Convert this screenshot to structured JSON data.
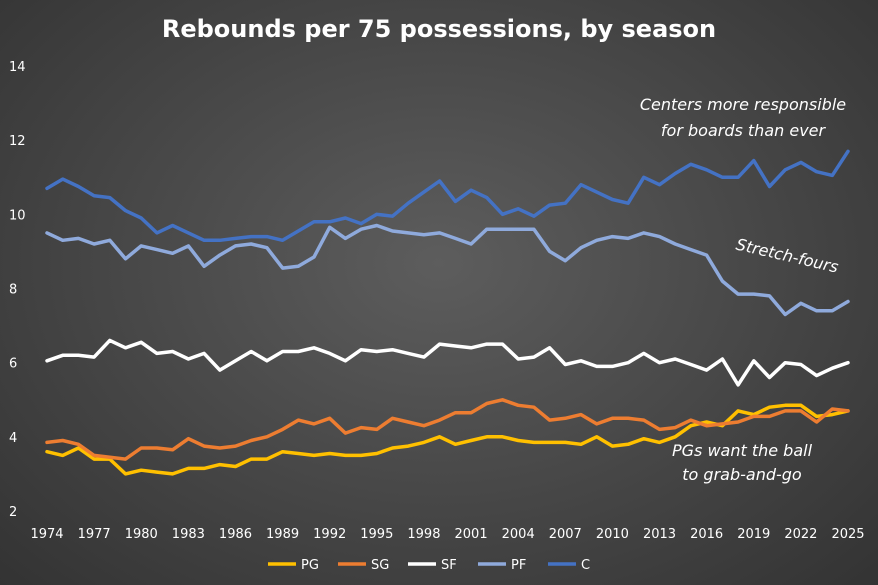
{
  "chart_data": {
    "type": "line",
    "title": "Rebounds per 75 possessions, by season",
    "xlabel": "",
    "ylabel": "",
    "xlim": [
      1974,
      2025
    ],
    "ylim": [
      2,
      14
    ],
    "yticks": [
      2,
      4,
      6,
      8,
      10,
      12,
      14
    ],
    "xticks": [
      1974,
      1977,
      1980,
      1983,
      1986,
      1989,
      1992,
      1995,
      1998,
      2001,
      2004,
      2007,
      2010,
      2013,
      2016,
      2019,
      2022,
      2025
    ],
    "grid": false,
    "legend_position": "bottom",
    "x": [
      1974,
      1975,
      1976,
      1977,
      1978,
      1979,
      1980,
      1981,
      1982,
      1983,
      1984,
      1985,
      1986,
      1987,
      1988,
      1989,
      1990,
      1991,
      1992,
      1993,
      1994,
      1995,
      1996,
      1997,
      1998,
      1999,
      2000,
      2001,
      2002,
      2003,
      2004,
      2005,
      2006,
      2007,
      2008,
      2009,
      2010,
      2011,
      2012,
      2013,
      2014,
      2015,
      2016,
      2017,
      2018,
      2019,
      2020,
      2021,
      2022,
      2023,
      2024,
      2025
    ],
    "series": [
      {
        "name": "PG",
        "color": "#ffc000",
        "values": [
          3.6,
          3.5,
          3.7,
          3.4,
          3.4,
          3.0,
          3.1,
          3.05,
          3.0,
          3.15,
          3.15,
          3.25,
          3.2,
          3.4,
          3.4,
          3.6,
          3.55,
          3.5,
          3.55,
          3.5,
          3.5,
          3.55,
          3.7,
          3.75,
          3.85,
          4.0,
          3.8,
          3.9,
          4.0,
          4.0,
          3.9,
          3.85,
          3.85,
          3.85,
          3.8,
          4.0,
          3.75,
          3.8,
          3.95,
          3.85,
          4.0,
          4.3,
          4.4,
          4.3,
          4.7,
          4.6,
          4.8,
          4.85,
          4.85,
          4.55,
          4.6,
          4.7
        ]
      },
      {
        "name": "SG",
        "color": "#ed7d31",
        "values": [
          3.85,
          3.9,
          3.8,
          3.5,
          3.45,
          3.4,
          3.7,
          3.7,
          3.65,
          3.95,
          3.75,
          3.7,
          3.75,
          3.9,
          4.0,
          4.2,
          4.45,
          4.35,
          4.5,
          4.1,
          4.25,
          4.2,
          4.5,
          4.4,
          4.3,
          4.45,
          4.65,
          4.65,
          4.9,
          5.0,
          4.85,
          4.8,
          4.45,
          4.5,
          4.6,
          4.35,
          4.5,
          4.5,
          4.45,
          4.2,
          4.25,
          4.45,
          4.3,
          4.35,
          4.4,
          4.55,
          4.55,
          4.7,
          4.7,
          4.4,
          4.75,
          4.7
        ]
      },
      {
        "name": "SF",
        "color": "#ffffff",
        "values": [
          6.05,
          6.2,
          6.2,
          6.15,
          6.6,
          6.4,
          6.55,
          6.25,
          6.3,
          6.1,
          6.25,
          5.8,
          6.05,
          6.3,
          6.05,
          6.3,
          6.3,
          6.4,
          6.25,
          6.05,
          6.35,
          6.3,
          6.35,
          6.25,
          6.15,
          6.5,
          6.45,
          6.4,
          6.5,
          6.5,
          6.1,
          6.15,
          6.4,
          5.95,
          6.05,
          5.9,
          5.9,
          6.0,
          6.25,
          6.0,
          6.1,
          5.95,
          5.8,
          6.1,
          5.4,
          6.05,
          5.6,
          6.0,
          5.95,
          5.65,
          5.85,
          6.0
        ]
      },
      {
        "name": "PF",
        "color": "#8faadc",
        "values": [
          9.5,
          9.3,
          9.35,
          9.2,
          9.3,
          8.8,
          9.15,
          9.05,
          8.95,
          9.15,
          8.6,
          8.9,
          9.15,
          9.2,
          9.1,
          8.55,
          8.6,
          8.85,
          9.65,
          9.35,
          9.6,
          9.7,
          9.55,
          9.5,
          9.45,
          9.5,
          9.35,
          9.2,
          9.6,
          9.6,
          9.6,
          9.6,
          9.0,
          8.75,
          9.1,
          9.3,
          9.4,
          9.35,
          9.5,
          9.4,
          9.2,
          9.05,
          8.9,
          8.2,
          7.85,
          7.85,
          7.8,
          7.3,
          7.6,
          7.4,
          7.4,
          7.65
        ]
      },
      {
        "name": "C",
        "color": "#4472c4",
        "values": [
          10.7,
          10.95,
          10.75,
          10.5,
          10.45,
          10.1,
          9.9,
          9.5,
          9.7,
          9.5,
          9.3,
          9.3,
          9.35,
          9.4,
          9.4,
          9.3,
          9.55,
          9.8,
          9.8,
          9.9,
          9.75,
          10.0,
          9.95,
          10.3,
          10.6,
          10.9,
          10.35,
          10.65,
          10.45,
          10.0,
          10.15,
          9.95,
          10.25,
          10.3,
          10.8,
          10.6,
          10.4,
          10.3,
          11.0,
          10.8,
          11.1,
          11.35,
          11.2,
          11.0,
          11.0,
          11.45,
          10.75,
          11.2,
          11.4,
          11.15,
          11.05,
          11.7
        ]
      }
    ],
    "annotations": [
      {
        "lines": [
          "Centers more responsible",
          "for boards than ever"
        ],
        "series": "C"
      },
      {
        "lines": [
          "Stretch-fours"
        ],
        "series": "PF"
      },
      {
        "lines": [
          "PGs want the ball",
          "to grab-and-go"
        ],
        "series": "PG"
      }
    ]
  }
}
